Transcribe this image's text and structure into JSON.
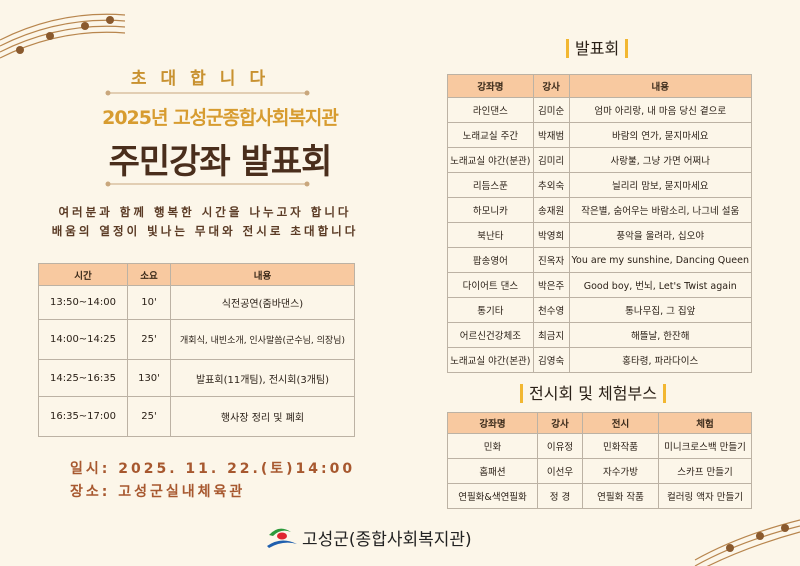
{
  "header": {
    "invite": "초대합니다",
    "subtitle": "2025년 고성군종합사회복지관",
    "title": "주민강좌 발표회",
    "message_line1": "여러분과 함께 행복한 시간을 나누고자 합니다",
    "message_line2": "배움의 열정이 빛나는 무대와 전시로 초대합니다"
  },
  "schedule": {
    "headers": [
      "시간",
      "소요",
      "내용"
    ],
    "rows": [
      [
        "13:50~14:00",
        "10'",
        "식전공연(줌바댄스)"
      ],
      [
        "14:00~14:25",
        "25'",
        "개회식, 내빈소개, 인사말씀(군수님, 의장님)"
      ],
      [
        "14:25~16:35",
        "130'",
        "발표회(11개팀), 전시회(3개팀)"
      ],
      [
        "16:35~17:00",
        "25'",
        "행사장 정리 및 폐회"
      ]
    ]
  },
  "info": {
    "date": "일시: 2025. 11. 22.(토)14:00",
    "place": "장소: 고성군실내체육관"
  },
  "performance": {
    "title": "발표회",
    "headers": [
      "강좌명",
      "강사",
      "내용"
    ],
    "rows": [
      [
        "라인댄스",
        "김미순",
        "엄마 아리랑, 내 마음 당신 곁으로"
      ],
      [
        "노래교실 주간",
        "박재범",
        "바람의 연가, 묻지마세요"
      ],
      [
        "노래교실 야간(분관)",
        "김미리",
        "사랑불, 그냥 가면 어쩌나"
      ],
      [
        "리듬스푼",
        "추외숙",
        "늴리리 맘보, 묻지마세요"
      ],
      [
        "하모니카",
        "송재원",
        "작은별, 숨어우는 바람소리, 나그네 설움"
      ],
      [
        "북난타",
        "박영희",
        "풍악을 울려라, 십오야"
      ],
      [
        "팝송영어",
        "진옥자",
        "You are my sunshine, Dancing Queen"
      ],
      [
        "다이어트 댄스",
        "박은주",
        "Good boy, 번뇌, Let's Twist again"
      ],
      [
        "통기타",
        "천수영",
        "통나무집, 그 집앞"
      ],
      [
        "어르신건강체조",
        "최금지",
        "해뜰날, 한잔해"
      ],
      [
        "노래교실 야간(본관)",
        "김영숙",
        "홍타령, 파라다이스"
      ]
    ]
  },
  "exhibition": {
    "title": "전시회 및 체험부스",
    "headers": [
      "강좌명",
      "강사",
      "전시",
      "체험"
    ],
    "rows": [
      [
        "민화",
        "이유정",
        "민화작품",
        "미니크로스백 만들기"
      ],
      [
        "홈패션",
        "이선우",
        "자수가방",
        "스카프 만들기"
      ],
      [
        "연필화&색연필화",
        "정 경",
        "연필화 작품",
        "컬러링 액자 만들기"
      ]
    ]
  },
  "footer": {
    "organization": "고성군(종합사회복지관)"
  },
  "colors": {
    "header_bg": "#f8c9a0",
    "background": "#fcf6e9",
    "accent_gold": "#d79c30",
    "date_text": "#a7582f",
    "bracket": "#f2b731"
  }
}
